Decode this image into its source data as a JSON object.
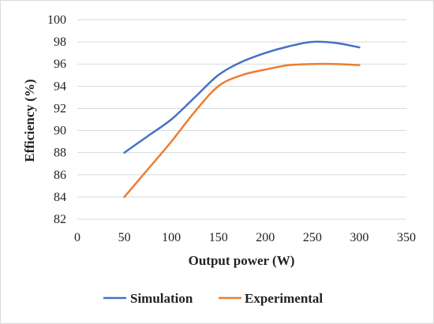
{
  "chart_data": {
    "type": "line",
    "title": "",
    "xlabel": "Output power (W)",
    "ylabel": "Efficiency (%)",
    "xlim": [
      0,
      350
    ],
    "ylim": [
      82,
      100
    ],
    "xticks": [
      0,
      50,
      100,
      150,
      200,
      250,
      300,
      350
    ],
    "yticks": [
      82,
      84,
      86,
      88,
      90,
      92,
      94,
      96,
      98,
      100
    ],
    "grid": "horizontal",
    "legend_position": "bottom",
    "series": [
      {
        "name": "Simulation",
        "color": "#4472c4",
        "x": [
          50,
          75,
          100,
          125,
          150,
          175,
          200,
          225,
          250,
          275,
          300
        ],
        "y": [
          88,
          89.5,
          91,
          93,
          95,
          96.2,
          97,
          97.6,
          98,
          97.9,
          97.5
        ]
      },
      {
        "name": "Experimental",
        "color": "#ed7d31",
        "x": [
          50,
          75,
          100,
          125,
          150,
          175,
          200,
          225,
          250,
          275,
          300
        ],
        "y": [
          84,
          86.5,
          89,
          91.7,
          94,
          95,
          95.5,
          95.9,
          96,
          96,
          95.9
        ]
      }
    ]
  }
}
